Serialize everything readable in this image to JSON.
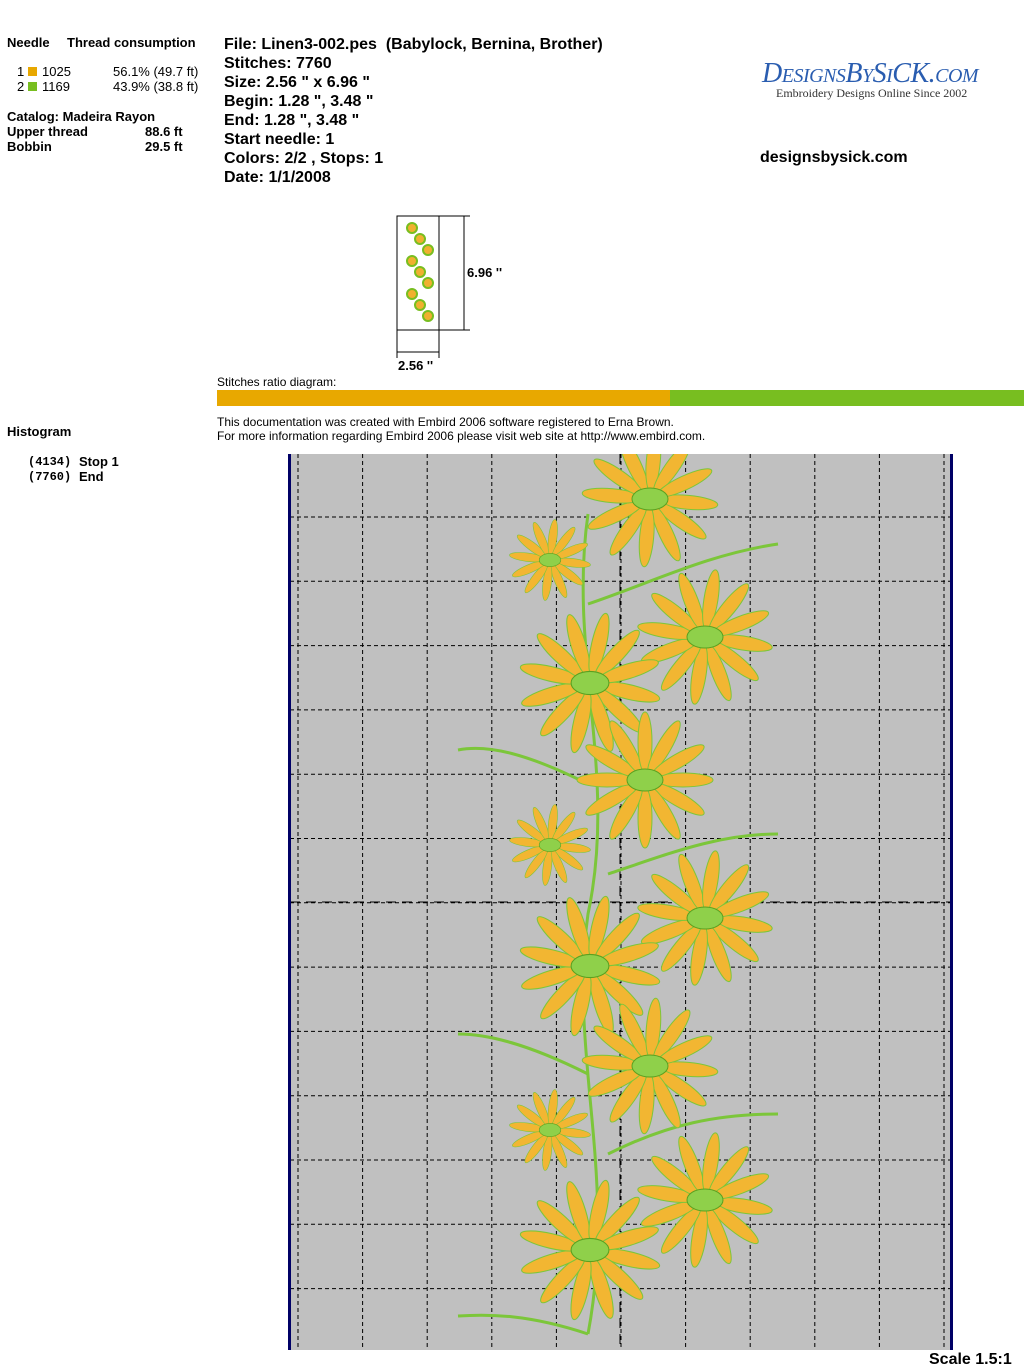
{
  "thread_table": {
    "headers": [
      "Needle",
      "Thread consumption"
    ],
    "rows": [
      {
        "needle": "1",
        "color": "#e8a800",
        "code": "1025",
        "consumption": "56.1% (49.7 ft)"
      },
      {
        "needle": "2",
        "color": "#78be20",
        "code": "1169",
        "consumption": "43.9% (38.8 ft)"
      }
    ]
  },
  "catalog": "Catalog: Madeira Rayon",
  "usage": [
    {
      "label": "Upper thread",
      "value": "88.6 ft"
    },
    {
      "label": "Bobbin",
      "value": "29.5 ft"
    }
  ],
  "file_info": [
    "File: Linen3-002.pes  (Babylock, Bernina, Brother)",
    "Stitches: 7760",
    "Size: 2.56 \" x 6.96 \"",
    "Begin: 1.28 \", 3.48 \"",
    "End: 1.28 \", 3.48 \"",
    "Start needle: 1",
    "Colors: 2/2 , Stops: 1",
    "Date: 1/1/2008"
  ],
  "logo": {
    "brand": "DesignsBySiCK.com",
    "tagline": "Embroidery Designs Online Since 2002"
  },
  "website": "designsbysick.com",
  "thumbnail": {
    "height": "6.96 ''",
    "width": "2.56 ''"
  },
  "ratio": {
    "label": "Stitches ratio diagram:",
    "segments": [
      {
        "color": "#e8a800",
        "value": 56.1
      },
      {
        "color": "#78be20",
        "value": 43.9
      }
    ]
  },
  "note": [
    "This documentation was created with Embird 2006 software registered to Erna Brown.",
    "For more information regarding Embird 2006 please visit web site at http://www.embird.com."
  ],
  "histogram": {
    "title": "Histogram",
    "entries": [
      {
        "stitch": "(4134)",
        "label": "Stop 1"
      },
      {
        "stitch": "(7760)",
        "label": "End"
      }
    ]
  },
  "scale": "Scale 1.5:1"
}
